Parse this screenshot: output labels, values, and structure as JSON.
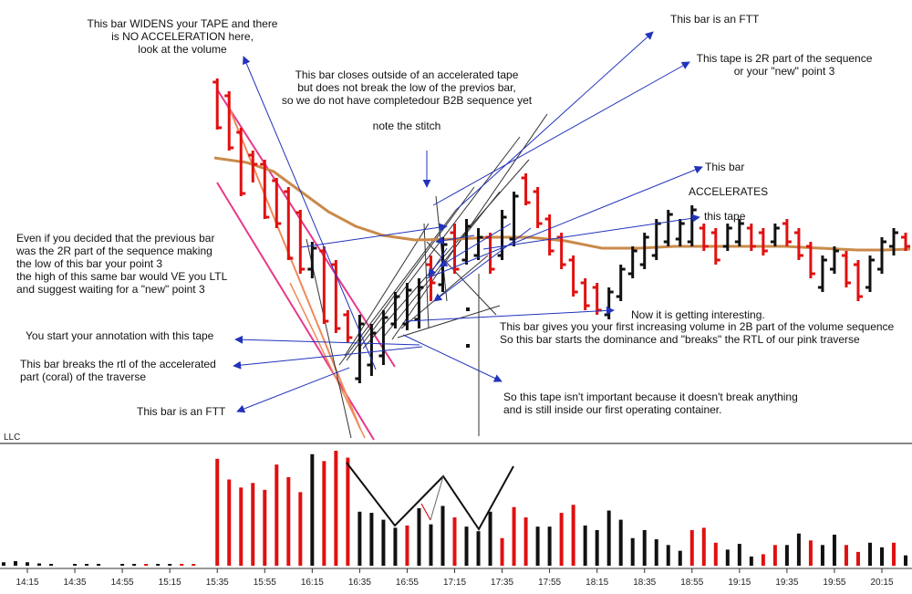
{
  "chart_data": {
    "type": "bar",
    "subtype": "price-bars-with-volume",
    "volume_panel_label": "LLC",
    "x_tick_labels": [
      "14:15",
      "14:35",
      "14:55",
      "15:15",
      "15:35",
      "15:55",
      "16:15",
      "16:35",
      "16:55",
      "17:15",
      "17:35",
      "17:55",
      "18:15",
      "18:35",
      "18:55",
      "19:15",
      "19:35",
      "19:55",
      "20:15"
    ],
    "colors": {
      "up": "#111111",
      "down": "#e01010",
      "ma": "#c98a4a",
      "pink": "#e8388a",
      "coral": "#f08a5a",
      "arrow": "#2233bb",
      "guide": "#333333"
    },
    "price_bars": [
      {
        "t": "15:35",
        "h": 86,
        "l": 142,
        "o": 90,
        "c": 140,
        "col": "down"
      },
      {
        "t": "15:40",
        "h": 100,
        "l": 165,
        "o": 105,
        "c": 162,
        "col": "down"
      },
      {
        "t": "15:45",
        "h": 140,
        "l": 215,
        "o": 145,
        "c": 212,
        "col": "down"
      },
      {
        "t": "15:50",
        "h": 165,
        "l": 200,
        "o": 170,
        "c": 180,
        "col": "down"
      },
      {
        "t": "15:55",
        "h": 175,
        "l": 240,
        "o": 180,
        "c": 238,
        "col": "down"
      },
      {
        "t": "16:00",
        "h": 195,
        "l": 250,
        "o": 198,
        "c": 245,
        "col": "down"
      },
      {
        "t": "16:05",
        "h": 205,
        "l": 285,
        "o": 210,
        "c": 283,
        "col": "down"
      },
      {
        "t": "16:10",
        "h": 230,
        "l": 300,
        "o": 233,
        "c": 295,
        "col": "down"
      },
      {
        "t": "16:15",
        "h": 265,
        "l": 305,
        "o": 295,
        "c": 272,
        "col": "up"
      },
      {
        "t": "16:20",
        "h": 270,
        "l": 355,
        "o": 275,
        "c": 352,
        "col": "down"
      },
      {
        "t": "16:25",
        "h": 285,
        "l": 365,
        "o": 290,
        "c": 360,
        "col": "down"
      },
      {
        "t": "16:30",
        "h": 340,
        "l": 375,
        "o": 345,
        "c": 370,
        "col": "down"
      },
      {
        "t": "16:35",
        "h": 345,
        "l": 420,
        "o": 415,
        "c": 355,
        "col": "up"
      },
      {
        "t": "16:40",
        "h": 355,
        "l": 412,
        "o": 400,
        "c": 365,
        "col": "up"
      },
      {
        "t": "16:45",
        "h": 340,
        "l": 400,
        "o": 390,
        "c": 348,
        "col": "up"
      },
      {
        "t": "16:50",
        "h": 320,
        "l": 360,
        "o": 355,
        "c": 325,
        "col": "up"
      },
      {
        "t": "16:55",
        "h": 310,
        "l": 362,
        "o": 355,
        "c": 318,
        "col": "up"
      },
      {
        "t": "17:00",
        "h": 305,
        "l": 360,
        "o": 350,
        "c": 315,
        "col": "up"
      },
      {
        "t": "17:05",
        "h": 280,
        "l": 330,
        "o": 290,
        "c": 310,
        "col": "down"
      },
      {
        "t": "17:10",
        "h": 260,
        "l": 320,
        "o": 312,
        "c": 268,
        "col": "up"
      },
      {
        "t": "17:15",
        "h": 245,
        "l": 300,
        "o": 255,
        "c": 295,
        "col": "down"
      },
      {
        "t": "17:20",
        "h": 240,
        "l": 290,
        "o": 285,
        "c": 248,
        "col": "up"
      },
      {
        "t": "17:25",
        "h": 250,
        "l": 285,
        "o": 280,
        "c": 260,
        "col": "up"
      },
      {
        "t": "17:30",
        "h": 255,
        "l": 300,
        "o": 260,
        "c": 295,
        "col": "down"
      },
      {
        "t": "17:35",
        "h": 230,
        "l": 285,
        "o": 280,
        "c": 238,
        "col": "up"
      },
      {
        "t": "17:40",
        "h": 210,
        "l": 270,
        "o": 262,
        "c": 215,
        "col": "up"
      },
      {
        "t": "17:45",
        "h": 190,
        "l": 225,
        "o": 195,
        "c": 222,
        "col": "down"
      },
      {
        "t": "17:50",
        "h": 205,
        "l": 250,
        "o": 210,
        "c": 245,
        "col": "down"
      },
      {
        "t": "17:55",
        "h": 235,
        "l": 280,
        "o": 240,
        "c": 275,
        "col": "down"
      },
      {
        "t": "18:00",
        "h": 255,
        "l": 295,
        "o": 260,
        "c": 290,
        "col": "down"
      },
      {
        "t": "18:05",
        "h": 280,
        "l": 325,
        "o": 285,
        "c": 320,
        "col": "down"
      },
      {
        "t": "18:10",
        "h": 305,
        "l": 340,
        "o": 310,
        "c": 335,
        "col": "down"
      },
      {
        "t": "18:15",
        "h": 310,
        "l": 345,
        "o": 315,
        "c": 340,
        "col": "down"
      },
      {
        "t": "18:20",
        "h": 315,
        "l": 350,
        "o": 345,
        "c": 320,
        "col": "up"
      },
      {
        "t": "18:25",
        "h": 290,
        "l": 330,
        "o": 325,
        "c": 295,
        "col": "up"
      },
      {
        "t": "18:30",
        "h": 270,
        "l": 305,
        "o": 300,
        "c": 275,
        "col": "up"
      },
      {
        "t": "18:35",
        "h": 255,
        "l": 295,
        "o": 290,
        "c": 260,
        "col": "up"
      },
      {
        "t": "18:40",
        "h": 240,
        "l": 285,
        "o": 280,
        "c": 245,
        "col": "up"
      },
      {
        "t": "18:45",
        "h": 230,
        "l": 270,
        "o": 265,
        "c": 235,
        "col": "up"
      },
      {
        "t": "18:50",
        "h": 240,
        "l": 270,
        "o": 262,
        "c": 245,
        "col": "up"
      },
      {
        "t": "18:55",
        "h": 225,
        "l": 270,
        "o": 265,
        "c": 230,
        "col": "up"
      },
      {
        "t": "19:00",
        "h": 245,
        "l": 275,
        "o": 250,
        "c": 270,
        "col": "down"
      },
      {
        "t": "19:05",
        "h": 250,
        "l": 290,
        "o": 255,
        "c": 285,
        "col": "down"
      },
      {
        "t": "19:10",
        "h": 245,
        "l": 275,
        "o": 270,
        "c": 250,
        "col": "up"
      },
      {
        "t": "19:15",
        "h": 240,
        "l": 270,
        "o": 265,
        "c": 245,
        "col": "up"
      },
      {
        "t": "19:20",
        "h": 245,
        "l": 275,
        "o": 250,
        "c": 270,
        "col": "down"
      },
      {
        "t": "19:25",
        "h": 250,
        "l": 280,
        "o": 255,
        "c": 275,
        "col": "down"
      },
      {
        "t": "19:30",
        "h": 245,
        "l": 270,
        "o": 265,
        "c": 250,
        "col": "up"
      },
      {
        "t": "19:35",
        "h": 240,
        "l": 270,
        "o": 245,
        "c": 265,
        "col": "down"
      },
      {
        "t": "19:40",
        "h": 250,
        "l": 285,
        "o": 255,
        "c": 280,
        "col": "down"
      },
      {
        "t": "19:45",
        "h": 265,
        "l": 305,
        "o": 270,
        "c": 300,
        "col": "down"
      },
      {
        "t": "19:50",
        "h": 280,
        "l": 320,
        "o": 315,
        "c": 285,
        "col": "up"
      },
      {
        "t": "19:55",
        "h": 270,
        "l": 300,
        "o": 295,
        "c": 275,
        "col": "up"
      },
      {
        "t": "20:00",
        "h": 275,
        "l": 315,
        "o": 280,
        "c": 310,
        "col": "down"
      },
      {
        "t": "20:05",
        "h": 285,
        "l": 330,
        "o": 290,
        "c": 325,
        "col": "down"
      },
      {
        "t": "20:10",
        "h": 280,
        "l": 320,
        "o": 315,
        "c": 285,
        "col": "up"
      },
      {
        "t": "20:15",
        "h": 260,
        "l": 300,
        "o": 295,
        "c": 265,
        "col": "up"
      },
      {
        "t": "20:20",
        "h": 250,
        "l": 280,
        "o": 270,
        "c": 255,
        "col": "up"
      },
      {
        "t": "20:25",
        "h": 255,
        "l": 275,
        "o": 260,
        "c": 270,
        "col": "down"
      }
    ],
    "volume_bars": [
      {
        "t": "14:05",
        "v": 3,
        "col": "up"
      },
      {
        "t": "14:10",
        "v": 4,
        "col": "up"
      },
      {
        "t": "14:15",
        "v": 3,
        "col": "up"
      },
      {
        "t": "14:20",
        "v": 2,
        "col": "up"
      },
      {
        "t": "14:25",
        "v": 1,
        "col": "up"
      },
      {
        "t": "14:35",
        "v": 1,
        "col": "up"
      },
      {
        "t": "14:40",
        "v": 1,
        "col": "up"
      },
      {
        "t": "14:45",
        "v": 1,
        "col": "up"
      },
      {
        "t": "14:55",
        "v": 1,
        "col": "up"
      },
      {
        "t": "15:00",
        "v": 1,
        "col": "up"
      },
      {
        "t": "15:05",
        "v": 1,
        "col": "down"
      },
      {
        "t": "15:10",
        "v": 1,
        "col": "up"
      },
      {
        "t": "15:15",
        "v": 1,
        "col": "up"
      },
      {
        "t": "15:20",
        "v": 1,
        "col": "down"
      },
      {
        "t": "15:25",
        "v": 1,
        "col": "down"
      },
      {
        "t": "15:35",
        "v": 93,
        "col": "down"
      },
      {
        "t": "15:40",
        "v": 75,
        "col": "down"
      },
      {
        "t": "15:45",
        "v": 68,
        "col": "down"
      },
      {
        "t": "15:50",
        "v": 72,
        "col": "down"
      },
      {
        "t": "15:55",
        "v": 66,
        "col": "down"
      },
      {
        "t": "16:00",
        "v": 88,
        "col": "down"
      },
      {
        "t": "16:05",
        "v": 77,
        "col": "down"
      },
      {
        "t": "16:10",
        "v": 64,
        "col": "down"
      },
      {
        "t": "16:15",
        "v": 97,
        "col": "up"
      },
      {
        "t": "16:20",
        "v": 91,
        "col": "down"
      },
      {
        "t": "16:25",
        "v": 100,
        "col": "down"
      },
      {
        "t": "16:30",
        "v": 94,
        "col": "down"
      },
      {
        "t": "16:35",
        "v": 47,
        "col": "up"
      },
      {
        "t": "16:40",
        "v": 46,
        "col": "up"
      },
      {
        "t": "16:45",
        "v": 40,
        "col": "up"
      },
      {
        "t": "16:50",
        "v": 33,
        "col": "up"
      },
      {
        "t": "16:55",
        "v": 35,
        "col": "down"
      },
      {
        "t": "17:00",
        "v": 50,
        "col": "up"
      },
      {
        "t": "17:05",
        "v": 36,
        "col": "up"
      },
      {
        "t": "17:10",
        "v": 52,
        "col": "up"
      },
      {
        "t": "17:15",
        "v": 42,
        "col": "down"
      },
      {
        "t": "17:20",
        "v": 34,
        "col": "up"
      },
      {
        "t": "17:25",
        "v": 30,
        "col": "up"
      },
      {
        "t": "17:30",
        "v": 47,
        "col": "up"
      },
      {
        "t": "17:35",
        "v": 24,
        "col": "down"
      },
      {
        "t": "17:40",
        "v": 51,
        "col": "down"
      },
      {
        "t": "17:45",
        "v": 42,
        "col": "down"
      },
      {
        "t": "17:50",
        "v": 34,
        "col": "up"
      },
      {
        "t": "17:55",
        "v": 34,
        "col": "up"
      },
      {
        "t": "18:00",
        "v": 46,
        "col": "down"
      },
      {
        "t": "18:05",
        "v": 53,
        "col": "down"
      },
      {
        "t": "18:10",
        "v": 35,
        "col": "up"
      },
      {
        "t": "18:15",
        "v": 31,
        "col": "up"
      },
      {
        "t": "18:20",
        "v": 48,
        "col": "up"
      },
      {
        "t": "18:25",
        "v": 40,
        "col": "up"
      },
      {
        "t": "18:30",
        "v": 24,
        "col": "up"
      },
      {
        "t": "18:35",
        "v": 31,
        "col": "up"
      },
      {
        "t": "18:40",
        "v": 23,
        "col": "up"
      },
      {
        "t": "18:45",
        "v": 18,
        "col": "up"
      },
      {
        "t": "18:50",
        "v": 13,
        "col": "up"
      },
      {
        "t": "18:55",
        "v": 31,
        "col": "down"
      },
      {
        "t": "19:00",
        "v": 33,
        "col": "down"
      },
      {
        "t": "19:05",
        "v": 20,
        "col": "down"
      },
      {
        "t": "19:10",
        "v": 14,
        "col": "up"
      },
      {
        "t": "19:15",
        "v": 19,
        "col": "up"
      },
      {
        "t": "19:20",
        "v": 8,
        "col": "up"
      },
      {
        "t": "19:25",
        "v": 10,
        "col": "down"
      },
      {
        "t": "19:30",
        "v": 18,
        "col": "down"
      },
      {
        "t": "19:35",
        "v": 18,
        "col": "up"
      },
      {
        "t": "19:40",
        "v": 28,
        "col": "up"
      },
      {
        "t": "19:45",
        "v": 22,
        "col": "down"
      },
      {
        "t": "19:50",
        "v": 18,
        "col": "up"
      },
      {
        "t": "19:55",
        "v": 27,
        "col": "up"
      },
      {
        "t": "20:00",
        "v": 18,
        "col": "down"
      },
      {
        "t": "20:05",
        "v": 12,
        "col": "down"
      },
      {
        "t": "20:10",
        "v": 20,
        "col": "up"
      },
      {
        "t": "20:15",
        "v": 16,
        "col": "up"
      },
      {
        "t": "20:20",
        "v": 20,
        "col": "down"
      },
      {
        "t": "20:25",
        "v": 9,
        "col": "up"
      }
    ],
    "annotations": [
      [
        "This bar WIDENS your TAPE and there",
        "is NO ACCELERATION here,",
        "look at the volume"
      ],
      [
        "This bar closes outside of an accelerated tape",
        "but does not break the low of the previos bar,",
        "so we do not have completedour B2B sequence yet"
      ],
      [
        "note the stitch"
      ],
      [
        "This bar is an FTT"
      ],
      [
        "This tape is 2R part of the sequence",
        "or your \"new\" point 3"
      ],
      [
        "This bar"
      ],
      [
        "ACCELERATES"
      ],
      [
        "this tape"
      ],
      [
        "Even if you decided that the previous bar",
        "was the 2R part of the sequence making",
        "the low of this bar your point 3",
        "the high of this same bar would VE you LTL",
        "and suggest waiting for a \"new\" point 3"
      ],
      [
        "You start your annotation with this tape"
      ],
      [
        "This bar breaks the rtl of the accelerated",
        "part (coral) of the traverse"
      ],
      [
        "This bar is an FTT"
      ],
      [
        "Now it is getting interesting."
      ],
      [
        "This bar gives you your first increasing volume in 2B part of the volume sequence",
        "So this bar starts the dominance and \"breaks\" the RTL of our pink traverse"
      ],
      [
        "So this tape isn't important because it doesn't break anything",
        "and is still inside our first operating container."
      ]
    ]
  }
}
